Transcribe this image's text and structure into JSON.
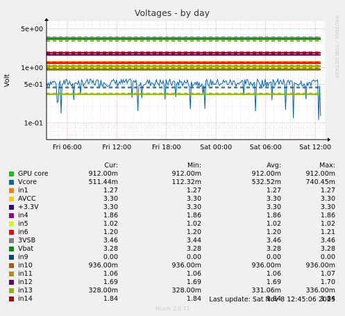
{
  "chart_data": {
    "type": "line",
    "title": "Voltages - by day",
    "ylabel": "Volt",
    "yscale": "log",
    "ylim": [
      0.05,
      7
    ],
    "xlim": [
      "Fri 03:30",
      "Sat 13:10"
    ],
    "xticks": [
      "Fri 06:00",
      "Fri 12:00",
      "Fri 18:00",
      "Sat 00:00",
      "Sat 06:00",
      "Sat 12:00"
    ],
    "yticks": [
      {
        "value": 5,
        "label": "5e+00"
      },
      {
        "value": 1,
        "label": "1e+00"
      },
      {
        "value": 0.5,
        "label": "5e-01"
      },
      {
        "value": 0.1,
        "label": "1e-01"
      }
    ],
    "grid": true,
    "side_label": "RRDTOOL / TOBI OETIKER",
    "series": [
      {
        "name": "GPU core",
        "color": "#00cc00",
        "cur": "912.00m",
        "min": "912.00m",
        "avg": "912.00m",
        "max": "912.00m",
        "value": 0.912,
        "warn": 0.96
      },
      {
        "name": "Vcore",
        "color": "#0066b3",
        "cur": "511.44m",
        "min": "112.32m",
        "avg": "532.52m",
        "max": "740.45m",
        "value": 0.532,
        "warn": 0.45,
        "noisy": true
      },
      {
        "name": "in1",
        "color": "#ff8000",
        "cur": "1.27",
        "min": "1.27",
        "avg": "1.27",
        "max": "1.27",
        "value": 1.27,
        "warn": 1.22
      },
      {
        "name": "AVCC",
        "color": "#ffcc00",
        "cur": "3.30",
        "min": "3.30",
        "avg": "3.30",
        "max": "3.30",
        "value": 3.3,
        "warn": 3.12
      },
      {
        "name": "+3.3V",
        "color": "#330099",
        "cur": "3.30",
        "min": "3.30",
        "avg": "3.30",
        "max": "3.30",
        "value": 3.3,
        "warn": 3.45
      },
      {
        "name": "in4",
        "color": "#990099",
        "cur": "1.86",
        "min": "1.86",
        "avg": "1.86",
        "max": "1.86",
        "value": 1.86,
        "warn": 1.92
      },
      {
        "name": "in5",
        "color": "#ccff00",
        "cur": "1.02",
        "min": "1.02",
        "avg": "1.02",
        "max": "1.02",
        "value": 1.02,
        "warn": 1.07
      },
      {
        "name": "in6",
        "color": "#ff0000",
        "cur": "1.20",
        "min": "1.20",
        "avg": "1.20",
        "max": "1.21",
        "value": 1.2,
        "warn": 1.25
      },
      {
        "name": "3VSB",
        "color": "#808080",
        "cur": "3.46",
        "min": "3.44",
        "avg": "3.46",
        "max": "3.46",
        "value": 3.46,
        "warn": 3.6
      },
      {
        "name": "Vbat",
        "color": "#008f00",
        "cur": "3.28",
        "min": "3.28",
        "avg": "3.28",
        "max": "3.28",
        "value": 3.28,
        "warn": 3.02
      },
      {
        "name": "in9",
        "color": "#00487d",
        "cur": "0.00",
        "min": "0.00",
        "avg": "0.00",
        "max": "0.00",
        "value": 0,
        "warn": 0.43
      },
      {
        "name": "in10",
        "color": "#b35a00",
        "cur": "936.00m",
        "min": "936.00m",
        "avg": "936.00m",
        "max": "936.00m",
        "value": 0.936,
        "warn": 0.99
      },
      {
        "name": "in11",
        "color": "#b38f00",
        "cur": "1.06",
        "min": "1.06",
        "avg": "1.06",
        "max": "1.07",
        "value": 1.06,
        "warn": 1.11
      },
      {
        "name": "in12",
        "color": "#6b006b",
        "cur": "1.69",
        "min": "1.69",
        "avg": "1.69",
        "max": "1.70",
        "value": 1.69,
        "warn": 1.75
      },
      {
        "name": "in13",
        "color": "#8fb300",
        "cur": "328.00m",
        "min": "328.00m",
        "avg": "331.06m",
        "max": "336.00m",
        "value": 0.33,
        "warn": 0.345
      },
      {
        "name": "in14",
        "color": "#b30000",
        "cur": "1.84",
        "min": "1.84",
        "avg": "1.84",
        "max": "1.84",
        "value": 1.84,
        "warn": 1.8
      }
    ]
  },
  "legend": {
    "headers": {
      "cur": "Cur:",
      "min": "Min:",
      "avg": "Avg:",
      "max": "Max:"
    }
  },
  "footer": {
    "last_update": "Last update: Sat Nov  8 12:45:06 2025",
    "munin": "Munin 2.0.73"
  }
}
